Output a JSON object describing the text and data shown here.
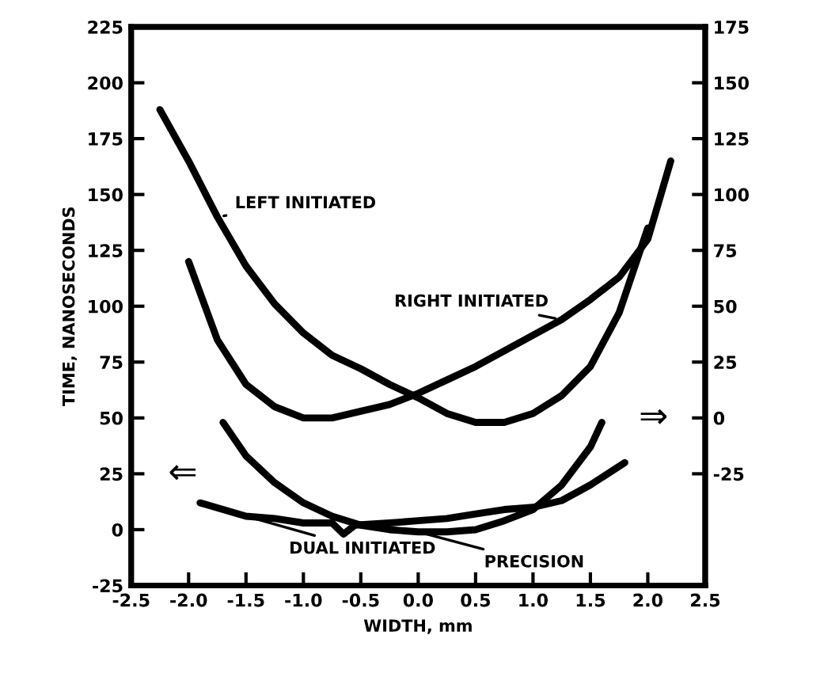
{
  "chart_data": {
    "type": "line",
    "xlabel": "WIDTH, mm",
    "ylabel": "TIME, NANOSECONDS",
    "xlim": [
      -2.5,
      2.5
    ],
    "xticks": [
      -2.5,
      {
        "value": -2,
        "label": "-2.0"
      },
      -1.5,
      {
        "value": -1,
        "label": "-1.0"
      },
      -0.5,
      {
        "value": 0,
        "label": "0.0"
      },
      0.5,
      {
        "value": 1,
        "label": "1.0"
      },
      1.5,
      {
        "value": 2,
        "label": "2.0"
      },
      2.5
    ],
    "ylim": [
      -25,
      225
    ],
    "yticks": [
      -25,
      0,
      25,
      50,
      75,
      100,
      125,
      150,
      175,
      200,
      225
    ],
    "y2lim": [
      -75,
      175
    ],
    "y2ticks": [
      -25,
      0,
      25,
      50,
      75,
      100,
      125,
      150,
      175
    ],
    "grid": false,
    "legend": false,
    "marker": "none",
    "line_style": "solid",
    "annotations": [
      "⇐",
      "⇒"
    ],
    "series": [
      {
        "name": "LEFT INITIATED",
        "color": "#000000",
        "axis": "y2",
        "x": [
          -2.25,
          -2.0,
          -1.75,
          -1.5,
          -1.25,
          -1.0,
          -0.75,
          -0.5,
          -0.25,
          0,
          0.25,
          0.5,
          0.75,
          1.0,
          1.25,
          1.5,
          1.75,
          2.0
        ],
        "values": [
          138,
          115,
          90,
          68,
          51,
          38,
          28,
          22,
          15,
          9,
          2,
          -2,
          -2,
          2,
          10,
          23,
          47,
          85
        ]
      },
      {
        "name": "RIGHT INITIATED",
        "color": "#000000",
        "axis": "y2",
        "x": [
          -2.0,
          -1.75,
          -1.5,
          -1.25,
          -1.0,
          -0.75,
          -0.5,
          -0.25,
          0,
          0.25,
          0.5,
          0.75,
          1.0,
          1.25,
          1.5,
          1.75,
          2.0,
          2.2
        ],
        "values": [
          70,
          35,
          15,
          5,
          0,
          0,
          3,
          6,
          11,
          17,
          23,
          30,
          37,
          44,
          53,
          63,
          80,
          115
        ]
      },
      {
        "name": "DUAL INITIATED",
        "color": "#000000",
        "x": [
          -1.9,
          -1.7,
          -1.5,
          -1.25,
          -1.0,
          -0.75,
          -0.65,
          -0.55,
          -0.25,
          0,
          0.25,
          0.5,
          0.75,
          1.0,
          1.25,
          1.5,
          1.8
        ],
        "values": [
          12,
          9,
          6,
          5,
          3,
          3,
          -2,
          2,
          3,
          4,
          5,
          7,
          9,
          10,
          13,
          20,
          30
        ]
      },
      {
        "name": "PRECISION",
        "color": "#000000",
        "x": [
          -1.7,
          -1.5,
          -1.25,
          -1.0,
          -0.75,
          -0.5,
          -0.25,
          0,
          0.25,
          0.5,
          0.75,
          1.0,
          1.25,
          1.5,
          1.6
        ],
        "values": [
          48,
          33,
          21,
          12,
          6,
          2,
          0,
          -1,
          -1,
          0,
          4,
          9,
          20,
          37,
          48
        ]
      }
    ]
  }
}
